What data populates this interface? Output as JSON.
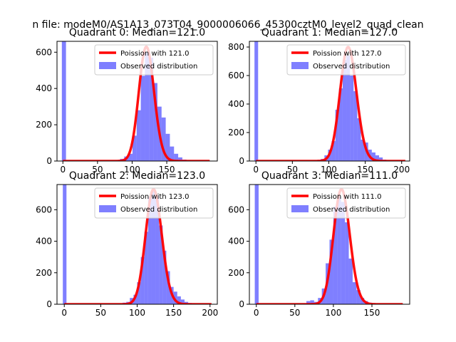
{
  "suptitle": "n file: modeM0/AS1A13_073T04_9000006066_45300cztM0_level2_quad_clean",
  "colors": {
    "hist": "#0000ff",
    "poisson": "#ff0000"
  },
  "chart_data": [
    {
      "type": "bar",
      "title": "Quadrant 0: Median=121.0",
      "legend_position": "top-right",
      "xlim": [
        -8.5,
        223
      ],
      "ylim": [
        0,
        660
      ],
      "xticks": [
        0,
        50,
        100,
        150
      ],
      "yticks": [
        0,
        200,
        400,
        600
      ],
      "series": [
        {
          "name": "Poission with 121.0",
          "kind": "line",
          "mu": 121.0,
          "peak": 630,
          "x_range": [
            0,
            212
          ]
        },
        {
          "name": "Observed distribution",
          "kind": "histogram",
          "bins": [
            [
              -1.5,
              4.5,
              690
            ],
            [
              58.5,
              64.5,
              3
            ],
            [
              64.5,
              70.5,
              2
            ],
            [
              70.5,
              76.5,
              3
            ],
            [
              76.5,
              82.5,
              5
            ],
            [
              82.5,
              88.5,
              12
            ],
            [
              88.5,
              94.5,
              25
            ],
            [
              94.5,
              100.5,
              40
            ],
            [
              100.5,
              106.5,
              140
            ],
            [
              106.5,
              112.5,
              280
            ],
            [
              112.5,
              118.5,
              470
            ],
            [
              118.5,
              124.5,
              600
            ],
            [
              124.5,
              130.5,
              570
            ],
            [
              130.5,
              136.5,
              430
            ],
            [
              136.5,
              142.5,
              300
            ],
            [
              142.5,
              148.5,
              240
            ],
            [
              148.5,
              154.5,
              150
            ],
            [
              154.5,
              160.5,
              80
            ],
            [
              160.5,
              166.5,
              40
            ],
            [
              166.5,
              172.5,
              20
            ],
            [
              172.5,
              178.5,
              8
            ],
            [
              178.5,
              184.5,
              4
            ]
          ]
        }
      ]
    },
    {
      "type": "bar",
      "title": "Quadrant 1: Median=127.0",
      "legend_position": "top-right",
      "xlim": [
        -9,
        211
      ],
      "ylim": [
        0,
        840
      ],
      "xticks": [
        0,
        50,
        100,
        150,
        200
      ],
      "yticks": [
        0,
        200,
        400,
        600,
        800
      ],
      "series": [
        {
          "name": "Poission with 127.0",
          "kind": "line",
          "mu": 127.0,
          "peak": 800,
          "x_range": [
            0,
            205
          ]
        },
        {
          "name": "Observed distribution",
          "kind": "histogram",
          "bins": [
            [
              -2,
              3,
              860
            ],
            [
              74,
              79,
              3
            ],
            [
              79,
              84,
              5
            ],
            [
              84,
              89,
              8
            ],
            [
              89,
              94,
              15
            ],
            [
              94,
              99,
              40
            ],
            [
              99,
              104,
              80
            ],
            [
              104,
              109,
              140
            ],
            [
              109,
              114,
              360
            ],
            [
              114,
              119,
              510
            ],
            [
              119,
              124,
              710
            ],
            [
              124,
              129,
              740
            ],
            [
              129,
              134,
              600
            ],
            [
              134,
              139,
              490
            ],
            [
              139,
              144,
              300
            ],
            [
              144,
              149,
              150
            ],
            [
              149,
              154,
              130
            ],
            [
              154,
              159,
              80
            ],
            [
              159,
              164,
              60
            ],
            [
              164,
              169,
              40
            ],
            [
              169,
              174,
              25
            ],
            [
              174,
              179,
              10
            ],
            [
              179,
              184,
              5
            ]
          ]
        }
      ]
    },
    {
      "type": "bar",
      "title": "Quadrant 2: Median=123.0",
      "legend_position": "top-right",
      "xlim": [
        -10,
        210
      ],
      "ylim": [
        0,
        760
      ],
      "xticks": [
        0,
        50,
        100,
        150,
        200
      ],
      "yticks": [
        0,
        200,
        400,
        600
      ],
      "series": [
        {
          "name": "Poission with 123.0",
          "kind": "line",
          "mu": 123.0,
          "peak": 730,
          "x_range": [
            0,
            202
          ]
        },
        {
          "name": "Observed distribution",
          "kind": "histogram",
          "bins": [
            [
              -2,
              3,
              780
            ],
            [
              80,
              85,
              10
            ],
            [
              85,
              90,
              15
            ],
            [
              90,
              95,
              40
            ],
            [
              95,
              100,
              60
            ],
            [
              100,
              105,
              140
            ],
            [
              105,
              110,
              300
            ],
            [
              110,
              115,
              460
            ],
            [
              115,
              120,
              680
            ],
            [
              120,
              125,
              720
            ],
            [
              125,
              130,
              690
            ],
            [
              130,
              135,
              500
            ],
            [
              135,
              140,
              340
            ],
            [
              140,
              145,
              210
            ],
            [
              145,
              150,
              110
            ],
            [
              150,
              155,
              80
            ],
            [
              155,
              160,
              50
            ],
            [
              160,
              165,
              30
            ],
            [
              165,
              170,
              15
            ],
            [
              170,
              175,
              8
            ],
            [
              175,
              180,
              5
            ]
          ]
        }
      ]
    },
    {
      "type": "bar",
      "title": "Quadrant 3: Median=111.0",
      "legend_position": "top-right",
      "xlim": [
        -9,
        199
      ],
      "ylim": [
        0,
        760
      ],
      "xticks": [
        0,
        50,
        100,
        150
      ],
      "yticks": [
        0,
        200,
        400,
        600
      ],
      "series": [
        {
          "name": "Poission with 111.0",
          "kind": "line",
          "mu": 111.0,
          "peak": 730,
          "x_range": [
            0,
            190
          ]
        },
        {
          "name": "Observed distribution",
          "kind": "histogram",
          "bins": [
            [
              -2,
              3,
              790
            ],
            [
              60,
              65,
              5
            ],
            [
              65,
              70,
              20
            ],
            [
              70,
              75,
              25
            ],
            [
              75,
              80,
              15
            ],
            [
              80,
              85,
              40
            ],
            [
              85,
              90,
              100
            ],
            [
              90,
              95,
              260
            ],
            [
              95,
              100,
              410
            ],
            [
              100,
              105,
              620
            ],
            [
              105,
              110,
              680
            ],
            [
              110,
              115,
              650
            ],
            [
              115,
              120,
              520
            ],
            [
              120,
              125,
              290
            ],
            [
              125,
              130,
              140
            ],
            [
              130,
              135,
              90
            ],
            [
              135,
              140,
              40
            ],
            [
              140,
              145,
              20
            ],
            [
              145,
              150,
              10
            ],
            [
              150,
              155,
              5
            ]
          ]
        }
      ]
    }
  ]
}
